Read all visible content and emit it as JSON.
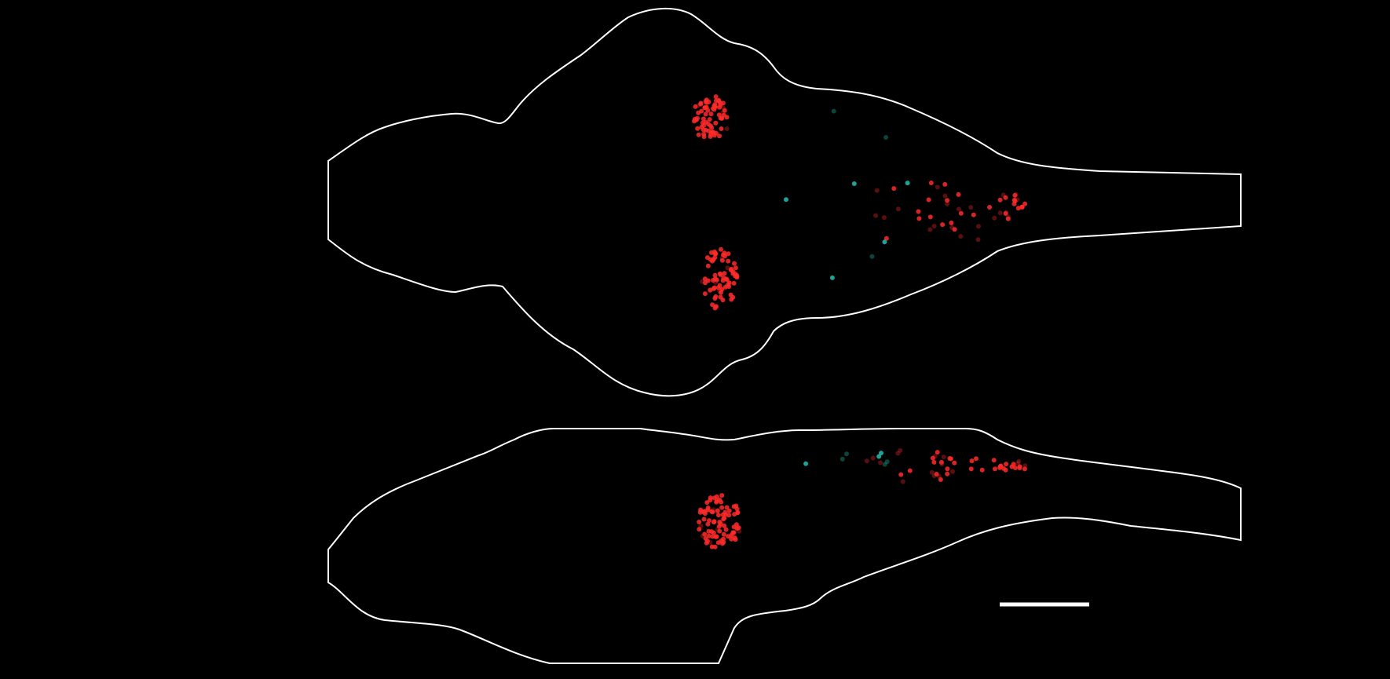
{
  "figure": {
    "background_color": "#000000",
    "outline_color": "#ffffff",
    "scale_bar_color": "#ffffff",
    "views": [
      {
        "name": "dorsal-view",
        "label": ""
      },
      {
        "name": "lateral-view",
        "label": ""
      }
    ],
    "cell_channels": [
      {
        "name": "red-cells",
        "color": "#ff2a2a"
      },
      {
        "name": "cyan-cells",
        "color": "#1fbfb0"
      }
    ],
    "scale_bar_label": ""
  }
}
